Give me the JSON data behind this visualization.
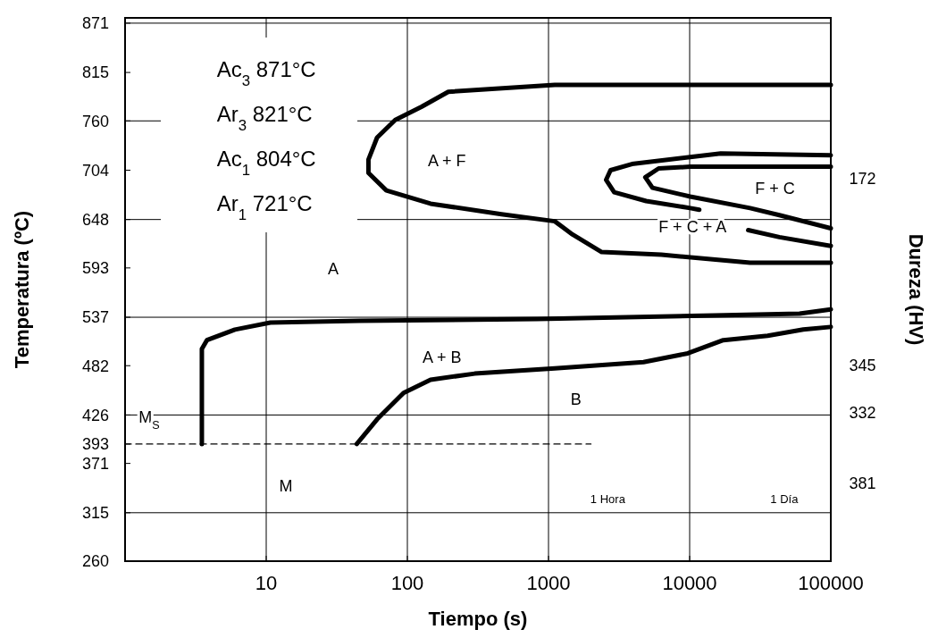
{
  "chart_data": {
    "type": "line",
    "xlabel": "Tiempo (s)",
    "ylabel": "Temperatura (ºC)",
    "y2label": "Dureza (HV)",
    "log": "x",
    "xlim": [
      1,
      100000
    ],
    "xticks": [
      10,
      100,
      1000,
      10000,
      100000
    ],
    "ylim": [
      260,
      877
    ],
    "yticks": [
      260,
      315,
      371,
      393,
      426,
      482,
      537,
      593,
      648,
      704,
      760,
      815,
      871
    ],
    "grid": "x",
    "line_style": "solid",
    "marker": "none",
    "series": [
      {
        "color": "#000000",
        "x": [
          100000,
          1107,
          195,
          126,
          82,
          61,
          53,
          53,
          71,
          146,
          464,
          1107,
          1480,
          2380,
          6300,
          26800,
          100000
        ],
        "values": [
          801,
          801,
          793,
          776,
          761,
          741,
          716,
          701,
          681,
          666,
          654,
          646,
          631,
          611,
          608,
          599,
          599
        ]
      },
      {
        "color": "#000000",
        "x": [
          100000,
          16600,
          10100,
          3900,
          2750,
          2560,
          2920,
          4920,
          10100,
          11700
        ],
        "values": [
          721,
          723,
          719,
          711,
          704,
          693,
          679,
          669,
          661,
          659
        ]
      },
      {
        "color": "#000000",
        "x": [
          100000,
          10100,
          6030,
          4850,
          5450,
          10100,
          26800,
          43200,
          100000
        ],
        "values": [
          708,
          708,
          706,
          696,
          684,
          674,
          661,
          653,
          638
        ]
      },
      {
        "color": "#000000",
        "x": [
          26000,
          43200,
          100000
        ],
        "values": [
          636,
          628,
          618
        ]
      },
      {
        "color": "#000000",
        "x": [
          3.5,
          3.5,
          3.8,
          6.0,
          10.7,
          45.7,
          828,
          15000,
          60000,
          100000
        ],
        "values": [
          393,
          501,
          511,
          523,
          531,
          533,
          535,
          539,
          541,
          546
        ]
      },
      {
        "color": "#000000",
        "x": [
          43.8,
          61,
          94,
          146,
          300,
          1107,
          4710,
          9700,
          17300,
          35700,
          63800,
          100000
        ],
        "values": [
          393,
          421,
          451,
          466,
          473,
          479,
          486,
          496,
          511,
          516,
          523,
          526
        ]
      },
      {
        "color": "#000000",
        "x": [
          1,
          2000
        ],
        "values": [
          393,
          393
        ],
        "line_style": "dashed"
      }
    ],
    "ref_lines": [
      {
        "axis": "y",
        "value": 871
      },
      {
        "axis": "y",
        "value": 760
      },
      {
        "axis": "y",
        "value": 648
      },
      {
        "axis": "y",
        "value": 537
      },
      {
        "axis": "y",
        "value": 426
      },
      {
        "axis": "y",
        "value": 315
      }
    ],
    "annotations": [
      "Ac$_{3}$ 871°C",
      "Ar$_{3}$ 821°C",
      "Ac$_{1}$ 804°C",
      "Ar$_{1}$ 721°C",
      "A + F",
      "F + C",
      "F + C + A",
      "A",
      "A + B",
      "B",
      "M",
      "M$_{S}$",
      "1 Hora",
      "1 Día",
      "172",
      "345",
      "332",
      "381"
    ]
  }
}
